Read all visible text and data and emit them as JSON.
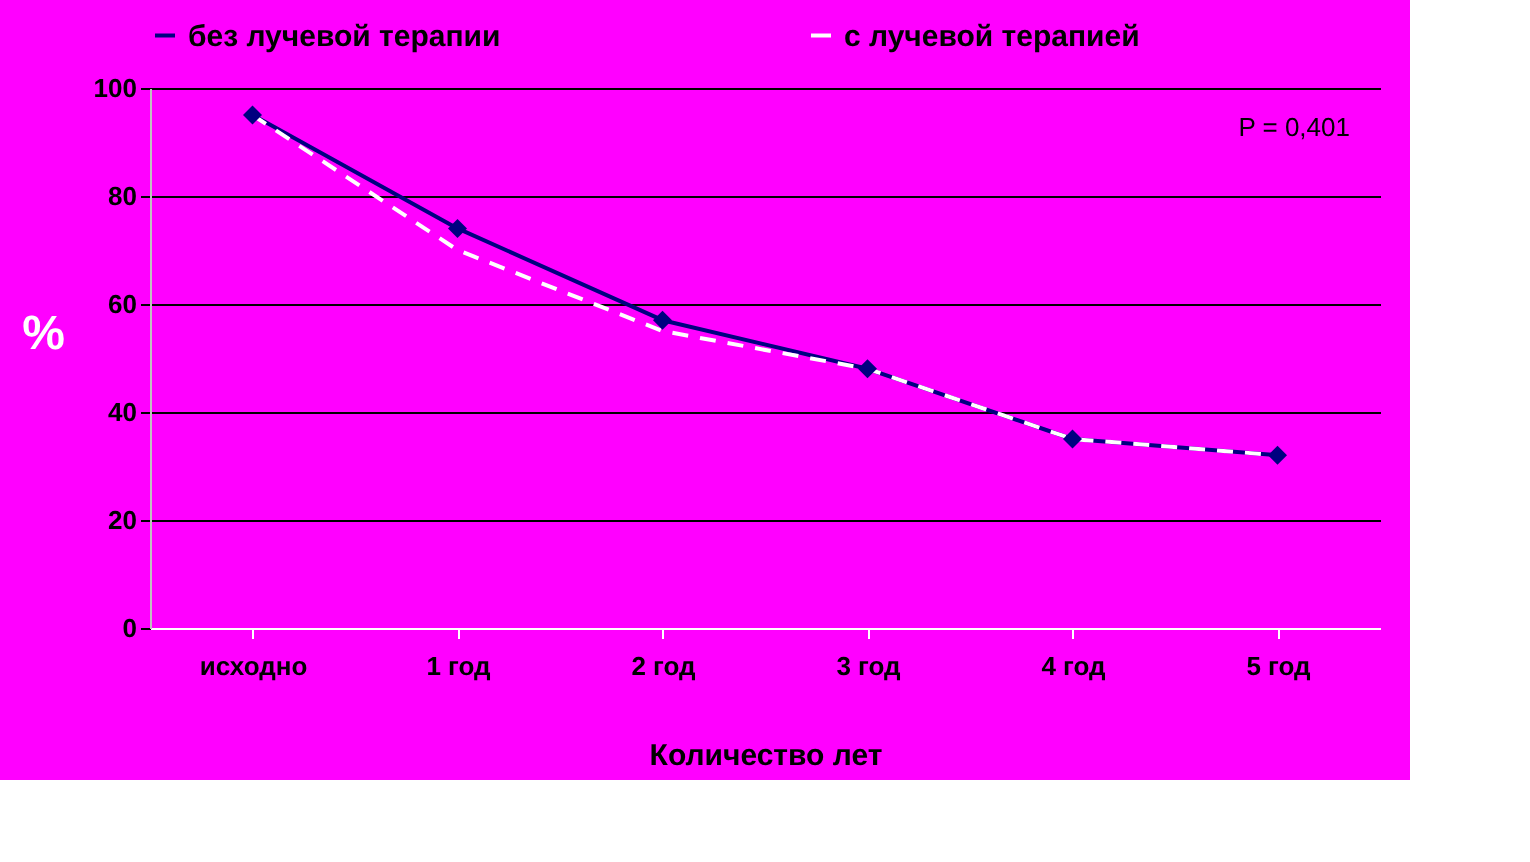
{
  "chart_data": {
    "type": "line",
    "xlabel": "Количество лет",
    "ylabel": "%",
    "categories": [
      "исходно",
      "1 год",
      "2 год",
      "3 год",
      "4 год",
      "5 год"
    ],
    "series": [
      {
        "name": "без лучевой терапии",
        "color": "#000080",
        "values": [
          95,
          74,
          57,
          48,
          35,
          32
        ],
        "marker": "diamond",
        "line_style": "solid"
      },
      {
        "name": "с лучевой терапией",
        "color": "#ffffff",
        "values": [
          95,
          70,
          55,
          48,
          35,
          32
        ],
        "marker": "none",
        "line_style": "dashed"
      }
    ],
    "ylim": [
      0,
      100
    ],
    "yticks": [
      0,
      20,
      40,
      60,
      80,
      100
    ],
    "grid": "y",
    "legend": "top",
    "annotations": [
      "P = 0,401"
    ]
  }
}
